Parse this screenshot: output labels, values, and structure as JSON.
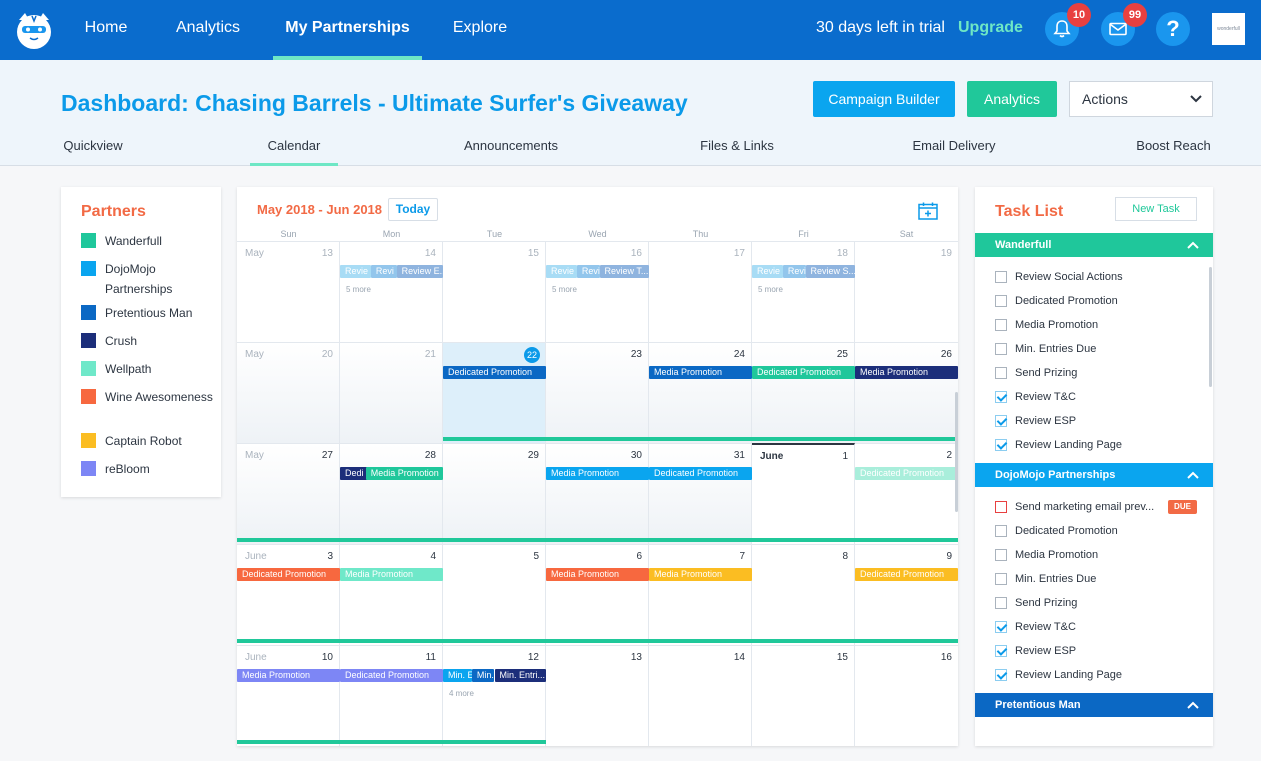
{
  "nav": {
    "links": [
      "Home",
      "Analytics",
      "My Partnerships",
      "Explore"
    ],
    "active": "My Partnerships",
    "trial_text": "30 days left in trial",
    "upgrade": "Upgrade",
    "notifications_count": "10",
    "messages_count": "99",
    "help": "?",
    "brand_text": "wonderfull"
  },
  "header": {
    "title": "Dashboard: Chasing Barrels - Ultimate Surfer's Giveaway",
    "campaign_builder": "Campaign Builder",
    "analytics": "Analytics",
    "actions": "Actions",
    "tabs": [
      "Quickview",
      "Calendar",
      "Announcements",
      "Files & Links",
      "Email Delivery",
      "Boost Reach"
    ],
    "active_tab": "Calendar"
  },
  "partners": {
    "title": "Partners",
    "items": [
      {
        "label": "Wanderfull",
        "color": "#1fc79b"
      },
      {
        "label": "DojoMojo Partnerships",
        "color": "#0aa5ef"
      },
      {
        "label": "Pretentious Man",
        "color": "#0b68c4"
      },
      {
        "label": "Crush",
        "color": "#1c2e7a"
      },
      {
        "label": "Wellpath",
        "color": "#6fe8c9"
      },
      {
        "label": "Wine Awesomeness",
        "color": "#f7683f"
      },
      {
        "label": "Captain Robot",
        "color": "#fbbd22"
      },
      {
        "label": "reBloom",
        "color": "#7d86f5"
      }
    ]
  },
  "calendar": {
    "range": "May 2018 - Jun 2018",
    "today_label": "Today",
    "dow": [
      "Sun",
      "Mon",
      "Tue",
      "Wed",
      "Thu",
      "Fri",
      "Sat"
    ],
    "more_labels": {
      "w0d1": "5 more",
      "w0d3": "5 more",
      "w0d5": "5 more",
      "w4d2": "4 more"
    },
    "weeks": [
      [
        {
          "mon": "May",
          "num": "13",
          "muted": true
        },
        {
          "num": "14",
          "muted": true
        },
        {
          "num": "15",
          "muted": true
        },
        {
          "num": "16",
          "muted": true
        },
        {
          "num": "17",
          "muted": true
        },
        {
          "num": "18",
          "muted": true
        },
        {
          "num": "19",
          "muted": true
        }
      ],
      [
        {
          "mon": "May",
          "num": "20",
          "muted": true
        },
        {
          "num": "21",
          "muted": true
        },
        {
          "num": "22",
          "today": true
        },
        {
          "num": "23"
        },
        {
          "num": "24"
        },
        {
          "num": "25"
        },
        {
          "num": "26"
        }
      ],
      [
        {
          "mon": "May",
          "num": "27"
        },
        {
          "num": "28"
        },
        {
          "num": "29"
        },
        {
          "num": "30"
        },
        {
          "num": "31"
        },
        {
          "mon": "June",
          "num": "1",
          "dark": true
        },
        {
          "num": "2"
        }
      ],
      [
        {
          "mon": "June",
          "num": "3"
        },
        {
          "num": "4"
        },
        {
          "num": "5"
        },
        {
          "num": "6"
        },
        {
          "num": "7"
        },
        {
          "num": "8"
        },
        {
          "num": "9"
        }
      ],
      [
        {
          "mon": "June",
          "num": "10"
        },
        {
          "num": "11"
        },
        {
          "num": "12"
        },
        {
          "num": "13"
        },
        {
          "num": "14"
        },
        {
          "num": "15"
        },
        {
          "num": "16"
        }
      ]
    ],
    "events": [
      {
        "w": 0,
        "d": 1,
        "off": 0,
        "span": 0.3,
        "label": "Revie",
        "color": "#a8dcf5"
      },
      {
        "w": 0,
        "d": 1,
        "off": 0.3,
        "span": 0.25,
        "label": "Revi",
        "color": "#93c6ec"
      },
      {
        "w": 0,
        "d": 1,
        "off": 0.55,
        "span": 0.45,
        "label": "Review E...",
        "color": "#8fb4df"
      },
      {
        "w": 0,
        "d": 3,
        "off": 0,
        "span": 0.3,
        "label": "Revie",
        "color": "#a8dcf5"
      },
      {
        "w": 0,
        "d": 3,
        "off": 0.3,
        "span": 0.22,
        "label": "Revi",
        "color": "#93c6ec"
      },
      {
        "w": 0,
        "d": 3,
        "off": 0.52,
        "span": 0.48,
        "label": "Review T...",
        "color": "#8fb4df"
      },
      {
        "w": 0,
        "d": 5,
        "off": 0,
        "span": 0.3,
        "label": "Revie",
        "color": "#a8dcf5"
      },
      {
        "w": 0,
        "d": 5,
        "off": 0.3,
        "span": 0.22,
        "label": "Revi",
        "color": "#93c6ec"
      },
      {
        "w": 0,
        "d": 5,
        "off": 0.52,
        "span": 0.48,
        "label": "Review S...",
        "color": "#8fb4df"
      },
      {
        "w": 1,
        "d": 2,
        "off": 0,
        "span": 1,
        "label": "Dedicated Promotion",
        "color": "#0b68c4"
      },
      {
        "w": 1,
        "d": 4,
        "off": 0,
        "span": 1,
        "label": "Media Promotion",
        "color": "#0b68c4"
      },
      {
        "w": 1,
        "d": 5,
        "off": 0,
        "span": 1,
        "label": "Dedicated Promotion",
        "color": "#1fc79b"
      },
      {
        "w": 1,
        "d": 6,
        "off": 0,
        "span": 1,
        "label": "Media Promotion",
        "color": "#1c2e7a"
      },
      {
        "w": 2,
        "d": 1,
        "off": 0,
        "span": 0.3,
        "label": "Dedi",
        "color": "#1c2e7a"
      },
      {
        "w": 2,
        "d": 1,
        "off": 0.25,
        "span": 0.75,
        "label": "Media Promotion",
        "color": "#1fc79b"
      },
      {
        "w": 2,
        "d": 3,
        "off": 0,
        "span": 1,
        "label": "Media Promotion",
        "color": "#0aa5ef"
      },
      {
        "w": 2,
        "d": 4,
        "off": 0,
        "span": 1,
        "label": "Dedicated Promotion",
        "color": "#0aa5ef"
      },
      {
        "w": 2,
        "d": 6,
        "off": 0,
        "span": 1,
        "label": "Dedicated Promotion",
        "color": "#a9eedb"
      },
      {
        "w": 3,
        "d": 0,
        "off": 0,
        "span": 1,
        "label": "Dedicated Promotion",
        "color": "#f7683f"
      },
      {
        "w": 3,
        "d": 1,
        "off": 0,
        "span": 1,
        "label": "Media Promotion",
        "color": "#6fe8c9"
      },
      {
        "w": 3,
        "d": 3,
        "off": 0,
        "span": 1,
        "label": "Media Promotion",
        "color": "#f7683f"
      },
      {
        "w": 3,
        "d": 4,
        "off": 0,
        "span": 1,
        "label": "Media Promotion",
        "color": "#fbbd22"
      },
      {
        "w": 3,
        "d": 6,
        "off": 0,
        "span": 1,
        "label": "Dedicated Promotion",
        "color": "#fbbd22"
      },
      {
        "w": 4,
        "d": 0,
        "off": 0,
        "span": 1,
        "label": "Media Promotion",
        "color": "#7d86f5"
      },
      {
        "w": 4,
        "d": 1,
        "off": 0,
        "span": 1,
        "label": "Dedicated Promotion",
        "color": "#7d86f5"
      },
      {
        "w": 4,
        "d": 2,
        "off": 0,
        "span": 0.28,
        "label": "Min. E",
        "color": "#0aa5ef"
      },
      {
        "w": 4,
        "d": 2,
        "off": 0.28,
        "span": 0.22,
        "label": "Min.",
        "color": "#0b68c4"
      },
      {
        "w": 4,
        "d": 2,
        "off": 0.5,
        "span": 0.5,
        "label": "Min. Entri...",
        "color": "#1c2e7a"
      }
    ]
  },
  "tasks": {
    "title": "Task List",
    "new_task": "New Task",
    "groups": [
      {
        "name": "Wanderfull",
        "color": "#1fc79b",
        "items": [
          {
            "label": "Review Social Actions",
            "checked": false
          },
          {
            "label": "Dedicated Promotion",
            "checked": false
          },
          {
            "label": "Media Promotion",
            "checked": false
          },
          {
            "label": "Min. Entries Due",
            "checked": false
          },
          {
            "label": "Send Prizing",
            "checked": false
          },
          {
            "label": "Review T&C",
            "checked": true
          },
          {
            "label": "Review ESP",
            "checked": true
          },
          {
            "label": "Review Landing Page",
            "checked": true
          }
        ]
      },
      {
        "name": "DojoMojo Partnerships",
        "color": "#0aa5ef",
        "items": [
          {
            "label": "Send marketing email prev...",
            "checked": false,
            "due": "DUE"
          },
          {
            "label": "Dedicated Promotion",
            "checked": false
          },
          {
            "label": "Media Promotion",
            "checked": false
          },
          {
            "label": "Min. Entries Due",
            "checked": false
          },
          {
            "label": "Send Prizing",
            "checked": false
          },
          {
            "label": "Review T&C",
            "checked": true
          },
          {
            "label": "Review ESP",
            "checked": true
          },
          {
            "label": "Review Landing Page",
            "checked": true
          }
        ]
      },
      {
        "name": "Pretentious Man",
        "color": "#0b68c4",
        "items": []
      }
    ]
  }
}
